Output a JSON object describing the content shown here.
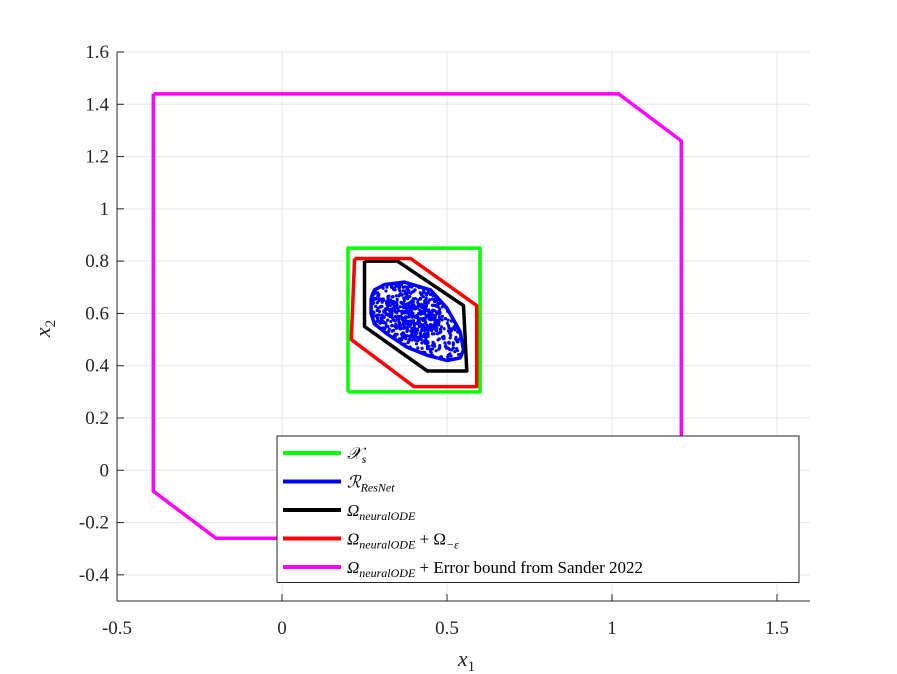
{
  "chart_data": {
    "type": "line",
    "xlabel": {
      "base": "x",
      "sub": "1"
    },
    "ylabel": {
      "base": "x",
      "sub": "2"
    },
    "xlim": [
      -0.5,
      1.6
    ],
    "ylim": [
      -0.5,
      1.6
    ],
    "xticks": [
      -0.5,
      0,
      0.5,
      1,
      1.5
    ],
    "xtick_labels": [
      "-0.5",
      "0",
      "0.5",
      "1",
      "1.5"
    ],
    "yticks": [
      -0.4,
      -0.2,
      0,
      0.2,
      0.4,
      0.6,
      0.8,
      1,
      1.2,
      1.4,
      1.6
    ],
    "ytick_labels": [
      "-0.4",
      "-0.2",
      "0",
      "0.2",
      "0.4",
      "0.6",
      "0.8",
      "1",
      "1.2",
      "1.4",
      "1.6"
    ],
    "grid": true,
    "legend_position": "bottom-right",
    "series": [
      {
        "name": "X_s",
        "legend": {
          "main": "𝒳",
          "sub": "s",
          "rest": ""
        },
        "color": "#00ff00",
        "points": [
          [
            0.2,
            0.3
          ],
          [
            0.6,
            0.3
          ],
          [
            0.6,
            0.85
          ],
          [
            0.2,
            0.85
          ],
          [
            0.2,
            0.3
          ]
        ]
      },
      {
        "name": "R_ResNet",
        "legend": {
          "main": "ℛ",
          "sub": "ResNet",
          "rest": ""
        },
        "color": "#0000ff",
        "points": [
          [
            0.27,
            0.66
          ],
          [
            0.28,
            0.69
          ],
          [
            0.31,
            0.71
          ],
          [
            0.37,
            0.72
          ],
          [
            0.45,
            0.69
          ],
          [
            0.5,
            0.62
          ],
          [
            0.54,
            0.53
          ],
          [
            0.55,
            0.46
          ],
          [
            0.54,
            0.43
          ],
          [
            0.5,
            0.42
          ],
          [
            0.44,
            0.44
          ],
          [
            0.38,
            0.47
          ],
          [
            0.32,
            0.52
          ],
          [
            0.28,
            0.56
          ],
          [
            0.27,
            0.6
          ],
          [
            0.27,
            0.66
          ]
        ],
        "scatter_center": [
          0.39,
          0.57
        ]
      },
      {
        "name": "Omega_neuralODE",
        "legend": {
          "main": "Ω",
          "sub": "neuralODE",
          "rest": ""
        },
        "color": "#000000",
        "points": [
          [
            0.25,
            0.8
          ],
          [
            0.35,
            0.8
          ],
          [
            0.55,
            0.63
          ],
          [
            0.56,
            0.38
          ],
          [
            0.44,
            0.38
          ],
          [
            0.25,
            0.55
          ],
          [
            0.25,
            0.8
          ]
        ]
      },
      {
        "name": "Omega_neuralODE + Omega_-epsilon",
        "legend": {
          "main": "Ω",
          "sub": "neuralODE",
          "rest": " + Ω",
          "sub2": "−ε"
        },
        "color": "#ff0000",
        "points": [
          [
            0.22,
            0.81
          ],
          [
            0.39,
            0.81
          ],
          [
            0.59,
            0.63
          ],
          [
            0.59,
            0.32
          ],
          [
            0.4,
            0.32
          ],
          [
            0.21,
            0.5
          ],
          [
            0.22,
            0.81
          ]
        ]
      },
      {
        "name": "Omega_neuralODE + Error bound from Sander 2022",
        "legend": {
          "main": "Ω",
          "sub": "neuralODE",
          "rest": " + Error bound from Sander 2022"
        },
        "color": "#ff00ff",
        "points": [
          [
            -0.39,
            1.44
          ],
          [
            1.02,
            1.44
          ],
          [
            1.21,
            1.26
          ],
          [
            1.21,
            0.0
          ],
          [
            1.02,
            -0.26
          ],
          [
            -0.2,
            -0.26
          ],
          [
            -0.39,
            -0.08
          ],
          [
            -0.39,
            1.44
          ]
        ]
      }
    ]
  }
}
